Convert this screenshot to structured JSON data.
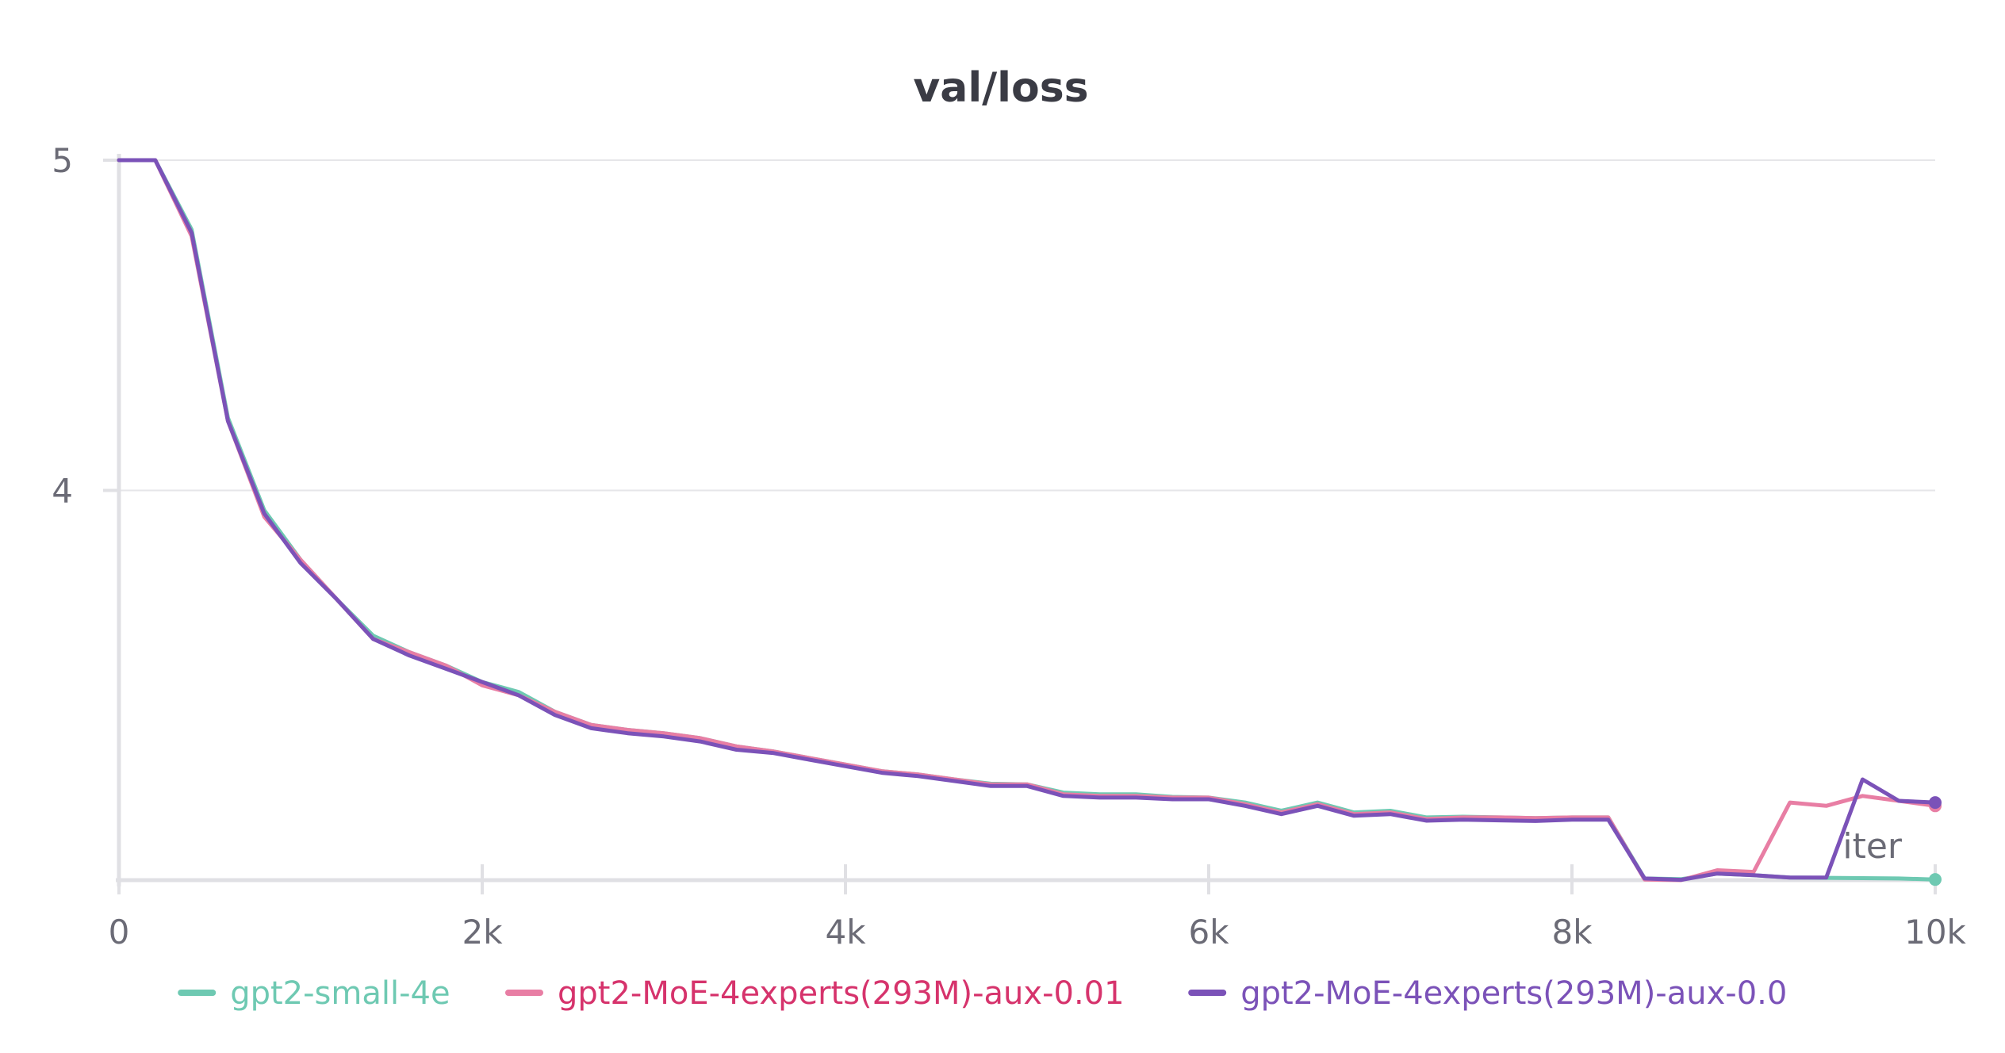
{
  "chart_data": {
    "type": "line",
    "title": "val/loss",
    "xlabel": "iter",
    "ylabel": "",
    "xlim": [
      0,
      10000
    ],
    "ylim": [
      2.82,
      5.0
    ],
    "x_ticks": [
      0,
      2000,
      4000,
      6000,
      8000,
      10000
    ],
    "x_tick_labels": [
      "0",
      "2k",
      "4k",
      "6k",
      "8k",
      "10k"
    ],
    "y_ticks": [
      4,
      5
    ],
    "y_tick_labels": [
      "4",
      "5"
    ],
    "grid": true,
    "legend_position": "bottom",
    "x": [
      0,
      200,
      400,
      600,
      800,
      1000,
      1200,
      1400,
      1600,
      1800,
      2000,
      2200,
      2400,
      2600,
      2800,
      3000,
      3200,
      3400,
      3600,
      3800,
      4000,
      4200,
      4400,
      4600,
      4800,
      5000,
      5200,
      5400,
      5600,
      5800,
      6000,
      6200,
      6400,
      6600,
      6800,
      7000,
      7200,
      7400,
      7600,
      7800,
      8000,
      8200,
      8400,
      8600,
      8800,
      9000,
      9200,
      9400,
      9600,
      9800,
      10000
    ],
    "series": [
      {
        "name": "gpt2-small-4e",
        "color": "#6ec9b2",
        "values": [
          5.0,
          5.0,
          4.79,
          4.22,
          3.94,
          3.79,
          3.67,
          3.56,
          3.51,
          3.47,
          3.42,
          3.39,
          3.33,
          3.29,
          3.275,
          3.265,
          3.25,
          3.225,
          3.21,
          3.19,
          3.17,
          3.15,
          3.14,
          3.125,
          3.112,
          3.11,
          3.085,
          3.08,
          3.08,
          3.072,
          3.07,
          3.055,
          3.03,
          3.055,
          3.025,
          3.03,
          3.01,
          3.012,
          3.01,
          3.008,
          3.01,
          3.01,
          2.825,
          2.823,
          2.84,
          2.835,
          2.828,
          2.827,
          2.826,
          2.825,
          2.822
        ]
      },
      {
        "name": "gpt2-MoE-4experts(293M)-aux-0.01",
        "color": "#e87ea4",
        "label_color": "#d6336c",
        "values": [
          5.0,
          5.0,
          4.77,
          4.21,
          3.92,
          3.79,
          3.67,
          3.55,
          3.51,
          3.47,
          3.41,
          3.38,
          3.33,
          3.29,
          3.275,
          3.265,
          3.25,
          3.225,
          3.21,
          3.19,
          3.17,
          3.15,
          3.14,
          3.125,
          3.11,
          3.11,
          3.08,
          3.075,
          3.075,
          3.07,
          3.07,
          3.05,
          3.025,
          3.05,
          3.02,
          3.025,
          3.005,
          3.01,
          3.01,
          3.008,
          3.01,
          3.01,
          2.822,
          2.82,
          2.85,
          2.845,
          3.055,
          3.045,
          3.075,
          3.06,
          3.045
        ]
      },
      {
        "name": "gpt2-MoE-4experts(293M)-aux-0.0",
        "color": "#7b52b8",
        "values": [
          5.0,
          5.0,
          4.78,
          4.21,
          3.93,
          3.78,
          3.67,
          3.55,
          3.5,
          3.46,
          3.42,
          3.38,
          3.32,
          3.28,
          3.265,
          3.255,
          3.24,
          3.215,
          3.205,
          3.185,
          3.165,
          3.145,
          3.135,
          3.12,
          3.105,
          3.105,
          3.075,
          3.07,
          3.07,
          3.065,
          3.065,
          3.045,
          3.02,
          3.045,
          3.015,
          3.02,
          3.0,
          3.003,
          3.001,
          2.999,
          3.003,
          3.003,
          2.825,
          2.821,
          2.84,
          2.835,
          2.828,
          2.828,
          3.125,
          3.06,
          3.055
        ]
      }
    ]
  }
}
